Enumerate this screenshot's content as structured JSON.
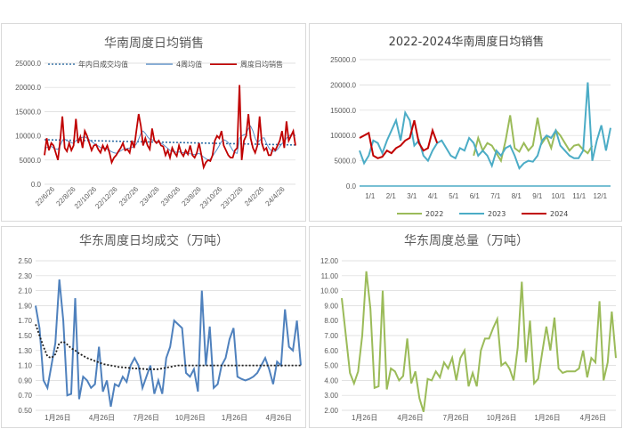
{
  "chart_data": [
    {
      "type": "line",
      "title": "华南周度日均销售",
      "ylim": [
        0,
        25000
      ],
      "yticks": [
        "0.0",
        "5000.0",
        "10000.0",
        "15000.0",
        "20000.0",
        "25000.0"
      ],
      "xticks": [
        "22/6/26",
        "22/8/26",
        "22/10/26",
        "22/12/26",
        "23/2/26",
        "23/4/26",
        "23/6/26",
        "23/8/26",
        "23/10/26",
        "23/12/26",
        "24/2/26",
        "24/4/26"
      ],
      "legend": [
        "年内日成交均值",
        "4周均值",
        "周度日均销售"
      ],
      "colors": [
        "#2e6da4",
        "#5b8fc9",
        "#c00000"
      ],
      "series": [
        {
          "name": "周度日均销售",
          "values": [
            6000,
            9500,
            7000,
            8500,
            8000,
            6500,
            5000,
            9000,
            14000,
            7500,
            6800,
            8500,
            7000,
            8000,
            13500,
            8500,
            9800,
            7500,
            11000,
            10000,
            8500,
            7000,
            8000,
            8200,
            7200,
            6500,
            8000,
            7000,
            8000,
            6500,
            4500,
            5500,
            6000,
            6800,
            7500,
            8500,
            7000,
            7200,
            6500,
            9000,
            7500,
            11000,
            14500,
            12000,
            8000,
            9500,
            8000,
            7200,
            11500,
            9000,
            8500,
            9000,
            8000,
            7800,
            6000,
            7000,
            5500,
            7500,
            6500,
            5800,
            8000,
            6500,
            5800,
            7000,
            6200,
            8000,
            6000,
            5500,
            6500,
            8500,
            6000,
            3500,
            4500,
            5000,
            4800,
            6000,
            9000,
            10000,
            9500,
            11000,
            8000,
            7000,
            6000,
            5500,
            5500,
            7000,
            7500,
            20500,
            5000,
            9000,
            10000,
            14500,
            9500,
            7500,
            6500,
            8000,
            14000,
            8500,
            7000,
            7500,
            6000,
            6000,
            7500,
            7000,
            8000,
            9000,
            11000,
            7500,
            13000,
            9000,
            10000,
            11000,
            8000
          ]
        },
        {
          "name": "4周均值",
          "values": [
            7500,
            7600,
            7700,
            7800,
            7500,
            7300,
            7200,
            8000,
            9000,
            9300,
            9000,
            8800,
            8600,
            8400,
            9000,
            9300,
            9600,
            9700,
            9800,
            9500,
            9200,
            8800,
            8500,
            8200,
            7900,
            7600,
            7500,
            7400,
            7200,
            7000,
            6700,
            6500,
            6400,
            6600,
            6900,
            7200,
            7300,
            7400,
            7500,
            7600,
            7800,
            8300,
            9300,
            10500,
            11000,
            10500,
            9800,
            9300,
            9200,
            9000,
            8800,
            8700,
            8500,
            8200,
            7800,
            7400,
            7000,
            6800,
            6700,
            6600,
            6700,
            6600,
            6500,
            6400,
            6300,
            6300,
            6200,
            6100,
            6200,
            6400,
            6000,
            5600,
            5300,
            5000,
            5200,
            5800,
            6500,
            7200,
            8000,
            8800,
            9200,
            9000,
            8600,
            7800,
            7000,
            6500,
            6400,
            9500,
            10000,
            10200,
            10400,
            11500,
            12000,
            11000,
            9500,
            8600,
            9000,
            9500,
            9600,
            8500,
            7600,
            7000,
            6800,
            6800,
            7200,
            7800,
            8400,
            8700,
            9500,
            10000,
            10200,
            10500,
            10000
          ]
        },
        {
          "name": "年内日成交均值",
          "values": [
            9200,
            8100
          ]
        }
      ]
    },
    {
      "type": "line",
      "title": "2022-2024华南周度日均销售",
      "ylim": [
        0,
        25000
      ],
      "yticks": [
        "0.0",
        "5000.0",
        "10000.0",
        "15000.0",
        "20000.0",
        "25000.0"
      ],
      "xticks": [
        "1/1",
        "2/1",
        "3/1",
        "4/1",
        "5/1",
        "6/1",
        "7/1",
        "8/1",
        "9/1",
        "10/1",
        "11/1",
        "12/1"
      ],
      "legend": [
        "2022",
        "2023",
        "2024"
      ],
      "colors": [
        "#9bbb59",
        "#4bacc6",
        "#c00000"
      ],
      "series": [
        {
          "name": "2022",
          "values": [
            null,
            null,
            null,
            null,
            null,
            null,
            null,
            null,
            null,
            null,
            null,
            null,
            null,
            null,
            null,
            null,
            null,
            null,
            null,
            null,
            null,
            null,
            null,
            null,
            null,
            6000,
            9500,
            7000,
            8500,
            8000,
            6500,
            5000,
            9000,
            14000,
            7500,
            6800,
            8500,
            7000,
            8000,
            13500,
            8500,
            9800,
            7500,
            11000,
            10000,
            8500,
            7000,
            8000,
            8200,
            7200,
            6500,
            8000
          ]
        },
        {
          "name": "2023",
          "values": [
            7000,
            4500,
            6000,
            9000,
            8500,
            6500,
            9000,
            11000,
            13000,
            9000,
            14500,
            13000,
            8000,
            9000,
            6000,
            5000,
            7000,
            8500,
            9000,
            7500,
            6000,
            5500,
            7500,
            7000,
            9500,
            8500,
            6000,
            7000,
            6000,
            4000,
            7000,
            6000,
            7500,
            8000,
            6000,
            3500,
            4500,
            5000,
            4800,
            6000,
            9000,
            10000,
            9500,
            11000,
            8000,
            7000,
            6000,
            5500,
            5500,
            7000,
            20500,
            5000,
            9000,
            12000,
            7000,
            11500
          ]
        },
        {
          "name": "2024",
          "values": [
            9500,
            10000,
            10500,
            6000,
            5500,
            5800,
            7000,
            6500,
            7500,
            8000,
            9000,
            9500,
            13000,
            8500,
            7000,
            7500,
            11000,
            8500
          ]
        }
      ]
    },
    {
      "type": "line",
      "title": "华东周度日均成交（万吨）",
      "ylim": [
        0.5,
        2.5
      ],
      "yticks": [
        "0.50",
        "0.70",
        "0.90",
        "1.10",
        "1.30",
        "1.50",
        "1.70",
        "1.90",
        "2.10",
        "2.30",
        "2.50"
      ],
      "xticks": [
        "1月26日",
        "4月26日",
        "7月26日",
        "10月26日",
        "1月26日",
        "4月26日"
      ],
      "colors": [
        "#4f81bd",
        "#1f1f1f"
      ],
      "series": [
        {
          "name": "周度日均成交",
          "values": [
            1.9,
            1.6,
            0.9,
            0.8,
            1.1,
            1.4,
            2.25,
            1.7,
            0.7,
            0.72,
            2.0,
            0.65,
            0.95,
            0.9,
            0.8,
            0.85,
            1.35,
            0.75,
            0.9,
            0.55,
            0.85,
            0.82,
            0.95,
            0.88,
            1.1,
            1.2,
            1.1,
            0.8,
            0.95,
            1.1,
            0.72,
            0.9,
            0.72,
            1.2,
            1.35,
            1.7,
            1.65,
            1.6,
            1.0,
            0.95,
            1.05,
            0.75,
            2.1,
            1.1,
            1.62,
            0.8,
            0.85,
            1.1,
            1.2,
            1.45,
            1.6,
            0.95,
            0.92,
            0.9,
            0.92,
            0.95,
            1.0,
            1.1,
            1.2,
            1.05,
            0.85,
            1.15,
            1.1,
            1.85,
            1.35,
            1.3,
            1.7,
            1.1
          ]
        },
        {
          "name": "均值",
          "values": [
            1.65,
            1.5,
            1.35,
            1.22,
            1.2,
            1.25,
            1.4,
            1.42,
            1.38,
            1.33,
            1.3,
            1.26,
            1.23,
            1.2,
            1.18,
            1.16,
            1.14,
            1.12,
            1.11,
            1.1,
            1.09,
            1.08,
            1.075,
            1.07,
            1.065,
            1.06,
            1.06,
            1.055,
            1.05,
            1.05,
            1.05,
            1.05,
            1.06,
            1.07,
            1.08,
            1.09,
            1.1,
            1.1,
            1.1,
            1.1,
            1.1,
            1.1,
            1.1,
            1.1,
            1.1,
            1.1,
            1.1,
            1.1,
            1.1,
            1.1,
            1.1,
            1.1,
            1.1,
            1.1,
            1.1,
            1.1,
            1.1,
            1.1,
            1.1,
            1.1,
            1.1,
            1.1,
            1.1,
            1.1,
            1.1,
            1.1,
            1.1,
            1.1
          ]
        }
      ]
    },
    {
      "type": "line",
      "title": "华东周度总量（万吨）",
      "ylim": [
        2.0,
        12.0
      ],
      "yticks": [
        "2.00",
        "3.00",
        "4.00",
        "5.00",
        "6.00",
        "7.00",
        "8.00",
        "9.00",
        "10.00",
        "11.00",
        "12.00"
      ],
      "xticks": [
        "1月26日",
        "4月26日",
        "7月26日",
        "10月26日",
        "1月26日",
        "4月26日"
      ],
      "colors": [
        "#9bbb59"
      ],
      "series": [
        {
          "name": "周度总量",
          "values": [
            9.5,
            7.0,
            4.5,
            3.8,
            4.6,
            7.0,
            11.3,
            8.8,
            3.5,
            3.6,
            10.0,
            3.4,
            4.8,
            4.6,
            4.0,
            4.3,
            6.8,
            3.8,
            4.6,
            2.8,
            1.9,
            4.1,
            4.0,
            4.6,
            4.2,
            5.2,
            4.8,
            5.5,
            4.0,
            5.5,
            6.0,
            3.6,
            4.5,
            3.6,
            6.0,
            6.8,
            6.8,
            7.5,
            8.1,
            5.0,
            5.2,
            4.8,
            4.0,
            6.2,
            10.6,
            5.2,
            8.0,
            3.8,
            4.1,
            5.9,
            7.6,
            6.0,
            8.2,
            4.8,
            4.5,
            4.6,
            4.6,
            4.6,
            4.8,
            6.0,
            4.2,
            5.5,
            5.2,
            9.3,
            4.0,
            5.2,
            8.6,
            5.5
          ]
        }
      ]
    }
  ]
}
